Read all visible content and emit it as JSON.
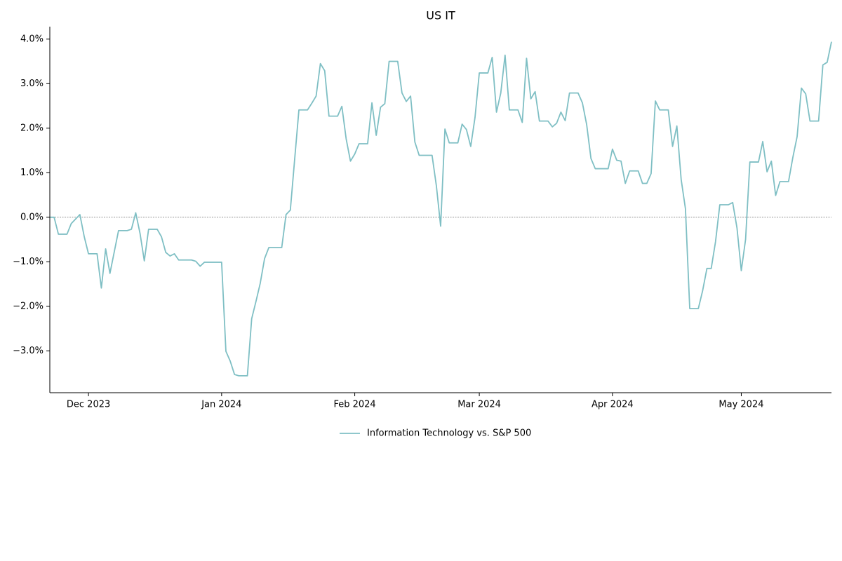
{
  "chart_data": {
    "type": "line",
    "title": "US IT",
    "xlim": [
      0,
      182
    ],
    "xticks": [
      {
        "value": 9,
        "label": "Dec 2023"
      },
      {
        "value": 40,
        "label": "Jan 2024"
      },
      {
        "value": 71,
        "label": "Feb 2024"
      },
      {
        "value": 100,
        "label": "Mar 2024"
      },
      {
        "value": 131,
        "label": "Apr 2024"
      },
      {
        "value": 161,
        "label": "May 2024"
      }
    ],
    "ylim": [
      -3.94,
      4.28
    ],
    "yticks": [
      {
        "value": -3,
        "label": "−3.0%"
      },
      {
        "value": -2,
        "label": "−2.0%"
      },
      {
        "value": -1,
        "label": "−1.0%"
      },
      {
        "value": 0,
        "label": "0.0%"
      },
      {
        "value": 1,
        "label": "1.0%"
      },
      {
        "value": 2,
        "label": "2.0%"
      },
      {
        "value": 3,
        "label": "3.0%"
      },
      {
        "value": 4,
        "label": "4.0%"
      }
    ],
    "reference_line": 0,
    "legend": "bottom",
    "series": [
      {
        "name": "Information Technology vs. S&P 500",
        "color": "#7fbfc4",
        "values": [
          0.0,
          0.0,
          -0.38,
          -0.38,
          -0.38,
          -0.14,
          -0.04,
          0.06,
          -0.43,
          -0.82,
          -0.82,
          -0.82,
          -1.59,
          -0.71,
          -1.26,
          -0.78,
          -0.3,
          -0.3,
          -0.3,
          -0.27,
          0.1,
          -0.36,
          -0.98,
          -0.27,
          -0.27,
          -0.27,
          -0.44,
          -0.79,
          -0.87,
          -0.82,
          -0.96,
          -0.96,
          -0.96,
          -0.96,
          -0.99,
          -1.1,
          -1.01,
          -1.01,
          -1.01,
          -1.01,
          -1.01,
          -3.01,
          -3.23,
          -3.53,
          -3.56,
          -3.56,
          -3.56,
          -2.28,
          -1.89,
          -1.48,
          -0.93,
          -0.68,
          -0.68,
          -0.68,
          -0.68,
          0.06,
          0.16,
          1.29,
          2.41,
          2.41,
          2.41,
          2.56,
          2.72,
          3.45,
          3.29,
          2.27,
          2.27,
          2.27,
          2.49,
          1.76,
          1.26,
          1.42,
          1.65,
          1.65,
          1.65,
          2.57,
          1.84,
          2.47,
          2.55,
          3.5,
          3.5,
          3.5,
          2.79,
          2.6,
          2.72,
          1.69,
          1.39,
          1.39,
          1.39,
          1.39,
          0.71,
          -0.2,
          1.98,
          1.67,
          1.67,
          1.67,
          2.09,
          1.97,
          1.59,
          2.24,
          3.24,
          3.24,
          3.24,
          3.59,
          2.36,
          2.79,
          3.64,
          2.41,
          2.41,
          2.41,
          2.13,
          3.57,
          2.66,
          2.82,
          2.16,
          2.16,
          2.16,
          2.03,
          2.11,
          2.36,
          2.17,
          2.79,
          2.79,
          2.79,
          2.57,
          2.08,
          1.32,
          1.09,
          1.09,
          1.09,
          1.09,
          1.53,
          1.28,
          1.26,
          0.76,
          1.04,
          1.04,
          1.04,
          0.76,
          0.76,
          0.98,
          2.61,
          2.41,
          2.41,
          2.41,
          1.59,
          2.05,
          0.85,
          0.19,
          -2.05,
          -2.05,
          -2.05,
          -1.65,
          -1.15,
          -1.15,
          -0.55,
          0.28,
          0.28,
          0.28,
          0.33,
          -0.24,
          -1.2,
          -0.5,
          1.24,
          1.24,
          1.24,
          1.7,
          1.02,
          1.26,
          0.49,
          0.8,
          0.8,
          0.8,
          1.34,
          1.81,
          2.9,
          2.77,
          2.16,
          2.16,
          2.16,
          3.42,
          3.48,
          3.94
        ]
      }
    ]
  }
}
